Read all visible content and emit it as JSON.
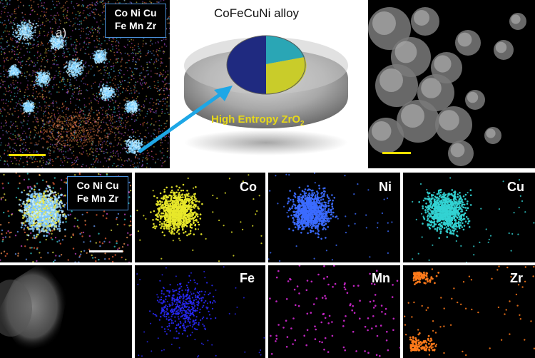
{
  "top_left": {
    "legend_line1": "Co Ni Cu",
    "legend_line2": "Fe Mn Zr",
    "panel_letter": "a)"
  },
  "schematic": {
    "title": "CoFeCuNi  alloy",
    "core_label_main": "High Entropy ZrO",
    "core_label_sub": "2",
    "colors": {
      "shell": "#9a9a9a",
      "navy": "#1f2a80",
      "yellow": "#c9cc2a",
      "teal": "#2aa6b5",
      "arrow": "#1ea7e6",
      "label": "#e6d81a"
    }
  },
  "bottom_left": {
    "legend_line1": "Co Ni Cu",
    "legend_line2": "Fe Mn Zr"
  },
  "element_maps": [
    {
      "key": "co",
      "label": "Co",
      "color": "#e8e82a"
    },
    {
      "key": "ni",
      "label": "Ni",
      "color": "#3b6cff"
    },
    {
      "key": "cu",
      "label": "Cu",
      "color": "#33d3d3"
    },
    {
      "key": "fe",
      "label": "Fe",
      "color": "#2a2aff"
    },
    {
      "key": "mn",
      "label": "Mn",
      "color": "#d228d2"
    },
    {
      "key": "zr",
      "label": "Zr",
      "color": "#ff7a1a"
    }
  ]
}
